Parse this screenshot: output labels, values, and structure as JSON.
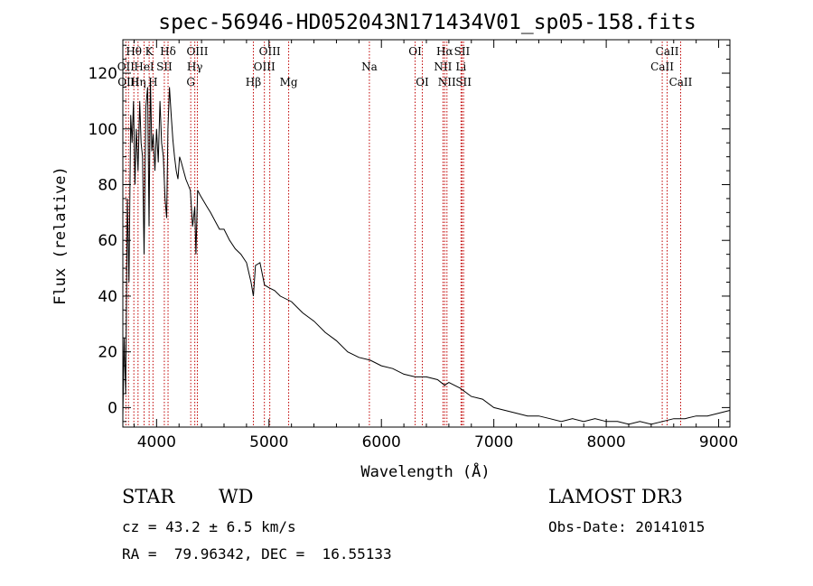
{
  "chart_data": {
    "type": "line",
    "title": "spec-56946-HD052043N171434V01_sp05-158.fits",
    "xlabel": "Wavelength (Å)",
    "ylabel": "Flux (relative)",
    "xlim": [
      3700,
      9100
    ],
    "ylim": [
      -7,
      132
    ],
    "xticks": [
      4000,
      5000,
      6000,
      7000,
      8000,
      9000
    ],
    "yticks": [
      0,
      20,
      40,
      60,
      80,
      100,
      120
    ],
    "grid": false,
    "series": [
      {
        "name": "flux",
        "x": [
          3700,
          3712,
          3725,
          3740,
          3755,
          3770,
          3782,
          3795,
          3808,
          3820,
          3835,
          3850,
          3862,
          3875,
          3889,
          3905,
          3920,
          3933,
          3945,
          3958,
          3970,
          3985,
          4000,
          4015,
          4030,
          4045,
          4060,
          4075,
          4090,
          4101,
          4115,
          4130,
          4145,
          4160,
          4175,
          4190,
          4205,
          4220,
          4240,
          4260,
          4280,
          4300,
          4320,
          4340,
          4350,
          4365,
          4390,
          4420,
          4450,
          4480,
          4520,
          4560,
          4600,
          4650,
          4700,
          4750,
          4800,
          4840,
          4861,
          4880,
          4920,
          4960,
          5000,
          5050,
          5100,
          5200,
          5300,
          5400,
          5500,
          5600,
          5700,
          5800,
          5900,
          6000,
          6100,
          6200,
          6300,
          6400,
          6500,
          6562,
          6600,
          6700,
          6800,
          6900,
          7000,
          7100,
          7200,
          7300,
          7400,
          7500,
          7600,
          7700,
          7800,
          7900,
          8000,
          8100,
          8200,
          8300,
          8400,
          8500,
          8600,
          8700,
          8800,
          8900,
          9000,
          9100
        ],
        "values": [
          -3,
          25,
          5,
          75,
          45,
          105,
          95,
          110,
          80,
          100,
          85,
          110,
          95,
          90,
          55,
          108,
          115,
          65,
          118,
          92,
          98,
          85,
          100,
          88,
          110,
          95,
          90,
          75,
          68,
          100,
          115,
          105,
          96,
          90,
          85,
          82,
          90,
          88,
          85,
          82,
          80,
          78,
          65,
          72,
          55,
          78,
          76,
          74,
          72,
          70,
          67,
          64,
          64,
          60,
          57,
          55,
          52,
          45,
          40,
          51,
          52,
          44,
          43,
          42,
          40,
          38,
          34,
          31,
          27,
          24,
          20,
          18,
          17,
          15,
          14,
          12,
          11,
          11,
          10,
          8,
          9,
          7,
          4,
          3,
          0,
          -1,
          -2,
          -3,
          -3,
          -4,
          -5,
          -4,
          -5,
          -4,
          -5,
          -5,
          -6,
          -5,
          -6,
          -5,
          -4,
          -4,
          -3,
          -3,
          -2,
          -1
        ]
      }
    ],
    "spectral_lines": [
      {
        "label": "Hθ",
        "x": 3798,
        "row": 0
      },
      {
        "label": "K",
        "x": 3934,
        "row": 0
      },
      {
        "label": "Hδ",
        "x": 4102,
        "row": 0
      },
      {
        "label": "OIII",
        "x": 4363,
        "row": 0
      },
      {
        "label": "OIII",
        "x": 5007,
        "row": 0
      },
      {
        "label": "OI",
        "x": 6300,
        "row": 0
      },
      {
        "label": "Hα",
        "x": 6563,
        "row": 0
      },
      {
        "label": "SII",
        "x": 6717,
        "row": 0
      },
      {
        "label": "CaII",
        "x": 8542,
        "row": 0
      },
      {
        "label": "OII",
        "x": 3727,
        "row": 1
      },
      {
        "label": "HeI",
        "x": 3889,
        "row": 1
      },
      {
        "label": "SII",
        "x": 4069,
        "row": 1
      },
      {
        "label": "Hγ",
        "x": 4340,
        "row": 1
      },
      {
        "label": "OIII",
        "x": 4959,
        "row": 1
      },
      {
        "label": "Na",
        "x": 5893,
        "row": 1
      },
      {
        "label": "NII",
        "x": 6548,
        "row": 1
      },
      {
        "label": "Li",
        "x": 6708,
        "row": 1
      },
      {
        "label": "CaII",
        "x": 8498,
        "row": 1
      },
      {
        "label": "OIII",
        "x": 3750,
        "row": 2
      },
      {
        "label": "Hη",
        "x": 3835,
        "row": 2
      },
      {
        "label": "H",
        "x": 3968,
        "row": 2
      },
      {
        "label": "G",
        "x": 4304,
        "row": 2
      },
      {
        "label": "Hβ",
        "x": 4861,
        "row": 2
      },
      {
        "label": "Mg",
        "x": 5175,
        "row": 2
      },
      {
        "label": "OI",
        "x": 6364,
        "row": 2
      },
      {
        "label": "NII",
        "x": 6583,
        "row": 2
      },
      {
        "label": "SII",
        "x": 6731,
        "row": 2
      },
      {
        "label": "CaII",
        "x": 8662,
        "row": 2
      }
    ]
  },
  "info": {
    "object_class": "STAR",
    "subclass": "WD",
    "survey": "LAMOST DR3",
    "cz": "cz = 43.2 ± 6.5 km/s",
    "obs_date": "Obs-Date: 20141015",
    "coords": "RA =  79.96342, DEC =  16.55133"
  },
  "colors": {
    "line": "#000000",
    "marker": "#c00000",
    "frame": "#000000"
  }
}
